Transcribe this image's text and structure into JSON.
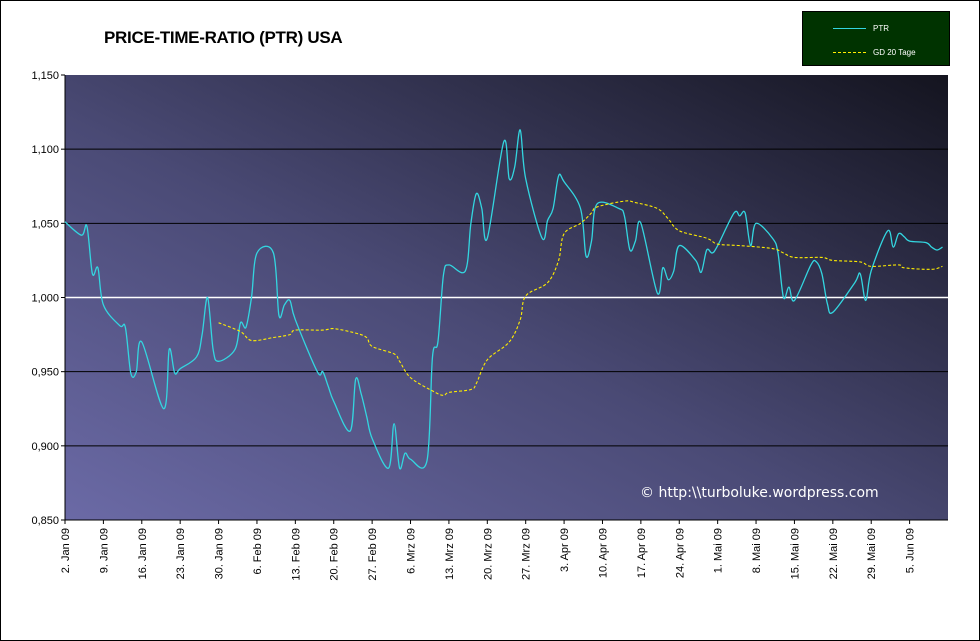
{
  "chart_data": {
    "type": "line",
    "title": "PRICE-TIME-RATIO (PTR) USA",
    "watermark": "© http:\\\\turboluke.wordpress.com",
    "ylim": [
      0.85,
      1.15
    ],
    "yticks": [
      {
        "value": 0.85,
        "label": "0,850"
      },
      {
        "value": 0.9,
        "label": "0,900"
      },
      {
        "value": 0.95,
        "label": "0,950"
      },
      {
        "value": 1.0,
        "label": "1,000"
      },
      {
        "value": 1.05,
        "label": "1,050"
      },
      {
        "value": 1.1,
        "label": "1,100"
      },
      {
        "value": 1.15,
        "label": "1,150"
      }
    ],
    "xlim": [
      "2009-01-02",
      "2009-06-12"
    ],
    "xticks": [
      "2. Jan 09",
      "9. Jan 09",
      "16. Jan 09",
      "23. Jan 09",
      "30. Jan 09",
      "6. Feb 09",
      "13. Feb 09",
      "20. Feb 09",
      "27. Feb 09",
      "6. Mrz 09",
      "13. Mrz 09",
      "20. Mrz 09",
      "27. Mrz 09",
      "3. Apr 09",
      "10. Apr 09",
      "17. Apr 09",
      "24. Apr 09",
      "1. Mai 09",
      "8. Mai 09",
      "15. Mai 09",
      "22. Mai 09",
      "29. Mai 09",
      "5. Jun 09"
    ],
    "grid": true,
    "legend_position": "top-right",
    "series": [
      {
        "name": "PTR",
        "color": "#33d6e0",
        "style": "solid",
        "points": [
          [
            "2009-01-02",
            1.051
          ],
          [
            "2009-01-05",
            1.042
          ],
          [
            "2009-01-06",
            1.048
          ],
          [
            "2009-01-07",
            1.016
          ],
          [
            "2009-01-08",
            1.02
          ],
          [
            "2009-01-09",
            0.995
          ],
          [
            "2009-01-12",
            0.981
          ],
          [
            "2009-01-13",
            0.98
          ],
          [
            "2009-01-14",
            0.949
          ],
          [
            "2009-01-15",
            0.95
          ],
          [
            "2009-01-16",
            0.97
          ],
          [
            "2009-01-20",
            0.925
          ],
          [
            "2009-01-21",
            0.965
          ],
          [
            "2009-01-22",
            0.949
          ],
          [
            "2009-01-23",
            0.952
          ],
          [
            "2009-01-26",
            0.96
          ],
          [
            "2009-01-27",
            0.975
          ],
          [
            "2009-01-28",
            1.0
          ],
          [
            "2009-01-29",
            0.965
          ],
          [
            "2009-01-30",
            0.957
          ],
          [
            "2009-02-02",
            0.965
          ],
          [
            "2009-02-03",
            0.983
          ],
          [
            "2009-02-04",
            0.98
          ],
          [
            "2009-02-05",
            1.0
          ],
          [
            "2009-02-06",
            1.03
          ],
          [
            "2009-02-09",
            1.03
          ],
          [
            "2009-02-10",
            0.988
          ],
          [
            "2009-02-11",
            0.995
          ],
          [
            "2009-02-12",
            0.998
          ],
          [
            "2009-02-13",
            0.985
          ],
          [
            "2009-02-17",
            0.95
          ],
          [
            "2009-02-18",
            0.95
          ],
          [
            "2009-02-19",
            0.94
          ],
          [
            "2009-02-20",
            0.93
          ],
          [
            "2009-02-23",
            0.91
          ],
          [
            "2009-02-24",
            0.945
          ],
          [
            "2009-02-25",
            0.935
          ],
          [
            "2009-02-26",
            0.92
          ],
          [
            "2009-02-27",
            0.905
          ],
          [
            "2009-03-02",
            0.885
          ],
          [
            "2009-03-03",
            0.915
          ],
          [
            "2009-03-04",
            0.885
          ],
          [
            "2009-03-05",
            0.895
          ],
          [
            "2009-03-06",
            0.891
          ],
          [
            "2009-03-09",
            0.89
          ],
          [
            "2009-03-10",
            0.96
          ],
          [
            "2009-03-11",
            0.97
          ],
          [
            "2009-03-12",
            1.015
          ],
          [
            "2009-03-13",
            1.022
          ],
          [
            "2009-03-16",
            1.018
          ],
          [
            "2009-03-17",
            1.05
          ],
          [
            "2009-03-18",
            1.07
          ],
          [
            "2009-03-19",
            1.06
          ],
          [
            "2009-03-20",
            1.04
          ],
          [
            "2009-03-23",
            1.105
          ],
          [
            "2009-03-24",
            1.08
          ],
          [
            "2009-03-25",
            1.088
          ],
          [
            "2009-03-26",
            1.113
          ],
          [
            "2009-03-27",
            1.08
          ],
          [
            "2009-03-30",
            1.04
          ],
          [
            "2009-03-31",
            1.052
          ],
          [
            "2009-04-01",
            1.06
          ],
          [
            "2009-04-02",
            1.082
          ],
          [
            "2009-04-03",
            1.078
          ],
          [
            "2009-04-06",
            1.06
          ],
          [
            "2009-04-07",
            1.028
          ],
          [
            "2009-04-08",
            1.038
          ],
          [
            "2009-04-09",
            1.063
          ],
          [
            "2009-04-13",
            1.06
          ],
          [
            "2009-04-14",
            1.055
          ],
          [
            "2009-04-15",
            1.032
          ],
          [
            "2009-04-16",
            1.038
          ],
          [
            "2009-04-17",
            1.05
          ],
          [
            "2009-04-20",
            1.003
          ],
          [
            "2009-04-21",
            1.02
          ],
          [
            "2009-04-22",
            1.012
          ],
          [
            "2009-04-23",
            1.018
          ],
          [
            "2009-04-24",
            1.035
          ],
          [
            "2009-04-27",
            1.025
          ],
          [
            "2009-04-28",
            1.017
          ],
          [
            "2009-04-29",
            1.032
          ],
          [
            "2009-04-30",
            1.03
          ],
          [
            "2009-05-01",
            1.035
          ],
          [
            "2009-05-04",
            1.057
          ],
          [
            "2009-05-05",
            1.055
          ],
          [
            "2009-05-06",
            1.057
          ],
          [
            "2009-05-07",
            1.035
          ],
          [
            "2009-05-08",
            1.05
          ],
          [
            "2009-05-11",
            1.04
          ],
          [
            "2009-05-12",
            1.03
          ],
          [
            "2009-05-13",
            1.0
          ],
          [
            "2009-05-14",
            1.007
          ],
          [
            "2009-05-15",
            0.998
          ],
          [
            "2009-05-18",
            1.022
          ],
          [
            "2009-05-19",
            1.024
          ],
          [
            "2009-05-20",
            1.016
          ],
          [
            "2009-05-21",
            0.996
          ],
          [
            "2009-05-22",
            0.99
          ],
          [
            "2009-05-26",
            1.01
          ],
          [
            "2009-05-27",
            1.016
          ],
          [
            "2009-05-28",
            0.998
          ],
          [
            "2009-05-29",
            1.018
          ],
          [
            "2009-06-01",
            1.045
          ],
          [
            "2009-06-02",
            1.034
          ],
          [
            "2009-06-03",
            1.043
          ],
          [
            "2009-06-04",
            1.041
          ],
          [
            "2009-06-05",
            1.038
          ],
          [
            "2009-06-08",
            1.037
          ],
          [
            "2009-06-09",
            1.034
          ],
          [
            "2009-06-10",
            1.032
          ],
          [
            "2009-06-11",
            1.034
          ]
        ]
      },
      {
        "name": "GD 20 Tage",
        "color": "#ffee00",
        "style": "dashed",
        "points": [
          [
            "2009-01-30",
            0.983
          ],
          [
            "2009-02-03",
            0.977
          ],
          [
            "2009-02-05",
            0.971
          ],
          [
            "2009-02-09",
            0.973
          ],
          [
            "2009-02-12",
            0.975
          ],
          [
            "2009-02-13",
            0.978
          ],
          [
            "2009-02-18",
            0.978
          ],
          [
            "2009-02-20",
            0.979
          ],
          [
            "2009-02-24",
            0.976
          ],
          [
            "2009-02-26",
            0.973
          ],
          [
            "2009-02-27",
            0.967
          ],
          [
            "2009-03-03",
            0.962
          ],
          [
            "2009-03-04",
            0.957
          ],
          [
            "2009-03-06",
            0.946
          ],
          [
            "2009-03-10",
            0.937
          ],
          [
            "2009-03-12",
            0.934
          ],
          [
            "2009-03-13",
            0.936
          ],
          [
            "2009-03-17",
            0.938
          ],
          [
            "2009-03-18",
            0.942
          ],
          [
            "2009-03-20",
            0.958
          ],
          [
            "2009-03-24",
            0.97
          ],
          [
            "2009-03-26",
            0.985
          ],
          [
            "2009-03-27",
            1.001
          ],
          [
            "2009-03-31",
            1.01
          ],
          [
            "2009-04-02",
            1.025
          ],
          [
            "2009-04-03",
            1.043
          ],
          [
            "2009-04-06",
            1.05
          ],
          [
            "2009-04-08",
            1.057
          ],
          [
            "2009-04-09",
            1.061
          ],
          [
            "2009-04-14",
            1.065
          ],
          [
            "2009-04-16",
            1.064
          ],
          [
            "2009-04-20",
            1.06
          ],
          [
            "2009-04-22",
            1.053
          ],
          [
            "2009-04-24",
            1.045
          ],
          [
            "2009-04-29",
            1.04
          ],
          [
            "2009-05-01",
            1.036
          ],
          [
            "2009-05-05",
            1.035
          ],
          [
            "2009-05-11",
            1.033
          ],
          [
            "2009-05-13",
            1.03
          ],
          [
            "2009-05-15",
            1.027
          ],
          [
            "2009-05-20",
            1.027
          ],
          [
            "2009-05-22",
            1.025
          ],
          [
            "2009-05-27",
            1.024
          ],
          [
            "2009-05-29",
            1.021
          ],
          [
            "2009-06-03",
            1.022
          ],
          [
            "2009-06-04",
            1.02
          ],
          [
            "2009-06-09",
            1.019
          ],
          [
            "2009-06-11",
            1.021
          ]
        ]
      }
    ]
  }
}
